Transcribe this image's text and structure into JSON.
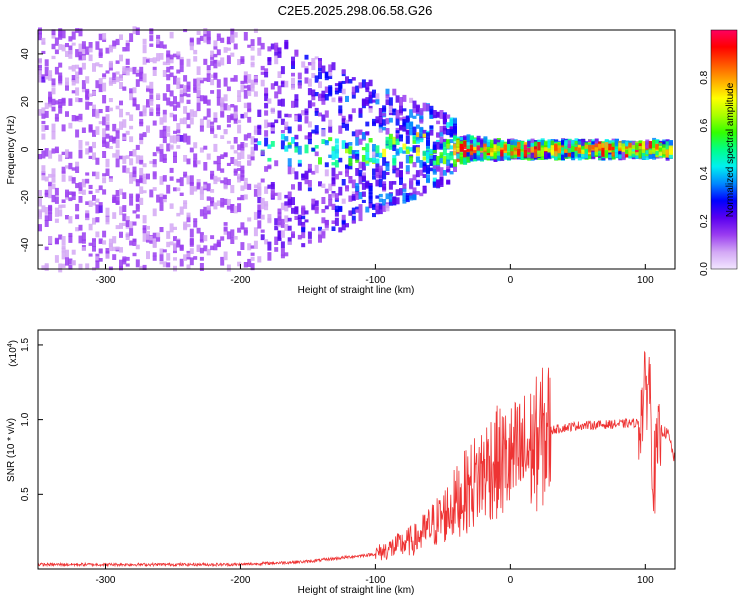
{
  "title": "C2E5.2025.298.06.58.G26",
  "chart_data": [
    {
      "type": "heatmap",
      "xlabel": "Height of straight line (km)",
      "ylabel": "Frequency (Hz)",
      "xlim": [
        -350,
        122
      ],
      "ylim": [
        -50,
        50
      ],
      "x_ticks": [
        "-300",
        "-200",
        "-100",
        "0",
        "100"
      ],
      "y_ticks": [
        "-40",
        "-20",
        "0",
        "20",
        "40"
      ],
      "colorbar": {
        "label": "Normalized spectral amplitude",
        "range": [
          0.0,
          1.0
        ],
        "ticks": [
          "0.0",
          "0.2",
          "0.4",
          "0.6",
          "0.8"
        ],
        "colors": [
          "#f2e6ff",
          "#d3a8f5",
          "#9a3df0",
          "#5a00f0",
          "#0000ff",
          "#0088ff",
          "#00f0f0",
          "#00ff88",
          "#33ff00",
          "#aaff00",
          "#ffff00",
          "#ffaa00",
          "#ff5500",
          "#ff0000",
          "#ff0060"
        ]
      },
      "description_regions": [
        {
          "x_range": [
            -350,
            -190
          ],
          "freq_spread": 50,
          "amplitude": 0.15
        },
        {
          "x_range": [
            -190,
            -40
          ],
          "freq_spread": 18,
          "amplitude": 0.3
        },
        {
          "x_range": [
            -40,
            122
          ],
          "freq_spread": 3,
          "amplitude": 0.6
        }
      ]
    },
    {
      "type": "line",
      "xlabel": "Height of straight line (km)",
      "ylabel": "SNR (10 * v/v)",
      "y_multiplier": "(x10",
      "y_multiplier_exp": "4",
      "xlim": [
        -350,
        122
      ],
      "ylim": [
        0.0,
        1.6
      ],
      "x_ticks": [
        "-300",
        "-200",
        "-100",
        "0",
        "100"
      ],
      "y_ticks": [
        "0.5",
        "1.0",
        "1.5"
      ],
      "color": "#ee3333",
      "envelope": [
        {
          "x": -350,
          "y": 0.03
        },
        {
          "x": -200,
          "y": 0.03
        },
        {
          "x": -150,
          "y": 0.05
        },
        {
          "x": -100,
          "y": 0.1
        },
        {
          "x": -70,
          "y": 0.2
        },
        {
          "x": -50,
          "y": 0.35
        },
        {
          "x": -30,
          "y": 0.55
        },
        {
          "x": -15,
          "y": 0.7
        },
        {
          "x": 0,
          "y": 0.72
        },
        {
          "x": 15,
          "y": 0.8
        },
        {
          "x": 30,
          "y": 0.93
        },
        {
          "x": 50,
          "y": 0.96
        },
        {
          "x": 80,
          "y": 0.97
        },
        {
          "x": 95,
          "y": 0.98
        },
        {
          "x": 103,
          "y": 1.3
        },
        {
          "x": 106,
          "y": 0.6
        },
        {
          "x": 112,
          "y": 0.93
        },
        {
          "x": 117,
          "y": 0.9
        },
        {
          "x": 122,
          "y": 0.72
        }
      ]
    }
  ]
}
